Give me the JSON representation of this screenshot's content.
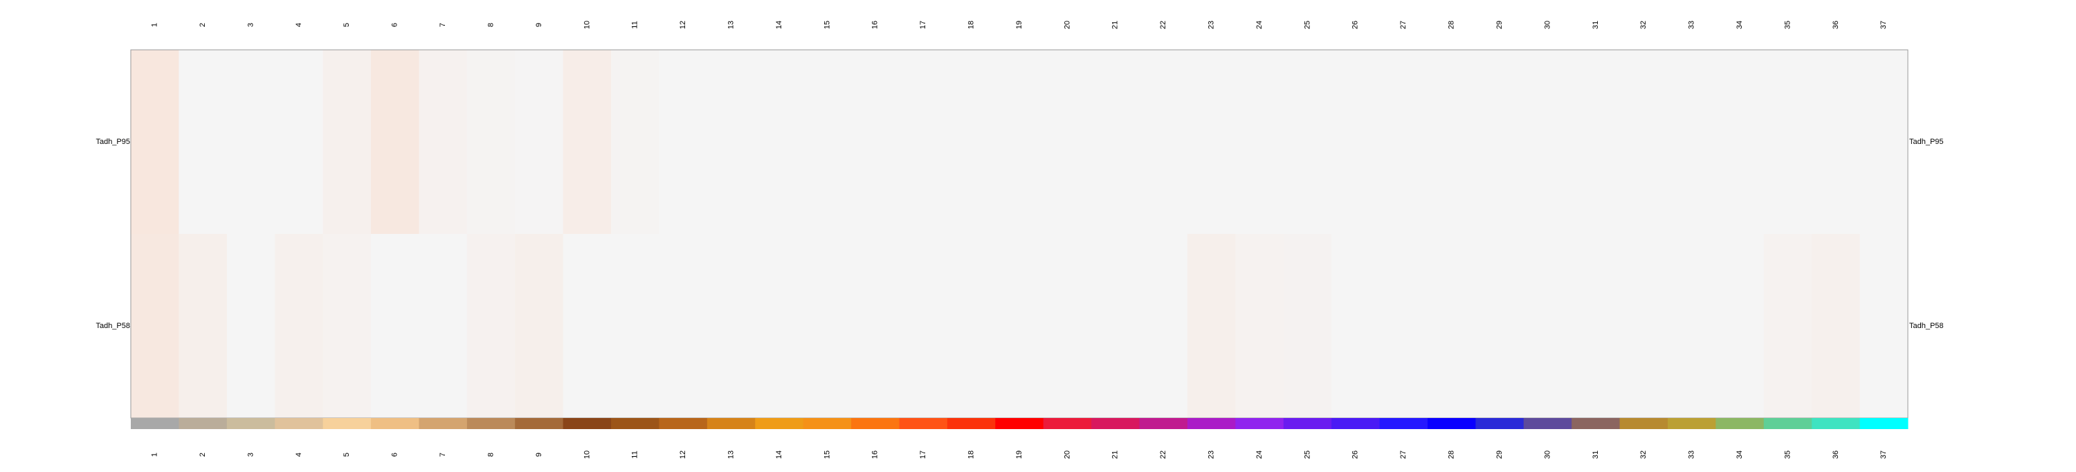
{
  "chart_data": {
    "type": "heatmap",
    "title": "",
    "columns": [
      "1",
      "2",
      "3",
      "4",
      "5",
      "6",
      "7",
      "8",
      "9",
      "10",
      "11",
      "12",
      "13",
      "14",
      "15",
      "16",
      "17",
      "18",
      "19",
      "20",
      "21",
      "22",
      "23",
      "24",
      "25",
      "26",
      "27",
      "28",
      "29",
      "30",
      "31",
      "32",
      "33",
      "34",
      "35",
      "36",
      "37"
    ],
    "rows": [
      "Tadh_P95",
      "Tadh_P58"
    ],
    "values": [
      [
        0.45,
        0.0,
        0.0,
        0.0,
        0.15,
        0.4,
        0.12,
        0.05,
        0.02,
        0.25,
        0.05,
        0.0,
        0.0,
        0.0,
        0.0,
        0.0,
        0.0,
        0.0,
        0.0,
        0.0,
        0.0,
        0.0,
        0.0,
        0.0,
        0.0,
        0.0,
        0.0,
        0.0,
        0.0,
        0.0,
        0.0,
        0.0,
        0.0,
        0.0,
        0.0,
        0.0,
        0.0
      ],
      [
        0.4,
        0.2,
        0.0,
        0.15,
        0.1,
        0.0,
        0.0,
        0.12,
        0.2,
        0.0,
        0.0,
        0.0,
        0.0,
        0.0,
        0.0,
        0.0,
        0.0,
        0.0,
        0.0,
        0.0,
        0.0,
        0.0,
        0.2,
        0.1,
        0.08,
        0.0,
        0.0,
        0.0,
        0.0,
        0.0,
        0.0,
        0.0,
        0.0,
        0.0,
        0.1,
        0.15,
        0.0
      ]
    ],
    "color_low": "#f5f5f5",
    "color_high": "#fbd5c1",
    "column_colors": [
      "#a8a8a8",
      "#baad9a",
      "#cbbc9d",
      "#e0c29b",
      "#f7d19b",
      "#efbf84",
      "#d4a46f",
      "#bb8a5a",
      "#a46a39",
      "#8a4518",
      "#9c5518",
      "#b8661a",
      "#d68319",
      "#ef9c17",
      "#f59117",
      "#fb7510",
      "#ff5316",
      "#fb330b",
      "#ff0000",
      "#ec1a3a",
      "#d8185e",
      "#c01a8f",
      "#aa1bc7",
      "#9024ee",
      "#6a1cf0",
      "#4a1af5",
      "#2518ff",
      "#0a00ff",
      "#2a2ad8",
      "#5d4a9c",
      "#8b6560",
      "#b78a30",
      "#bba034",
      "#8cb764",
      "#5fcf97",
      "#3fe3c1",
      "#00ffff"
    ]
  }
}
